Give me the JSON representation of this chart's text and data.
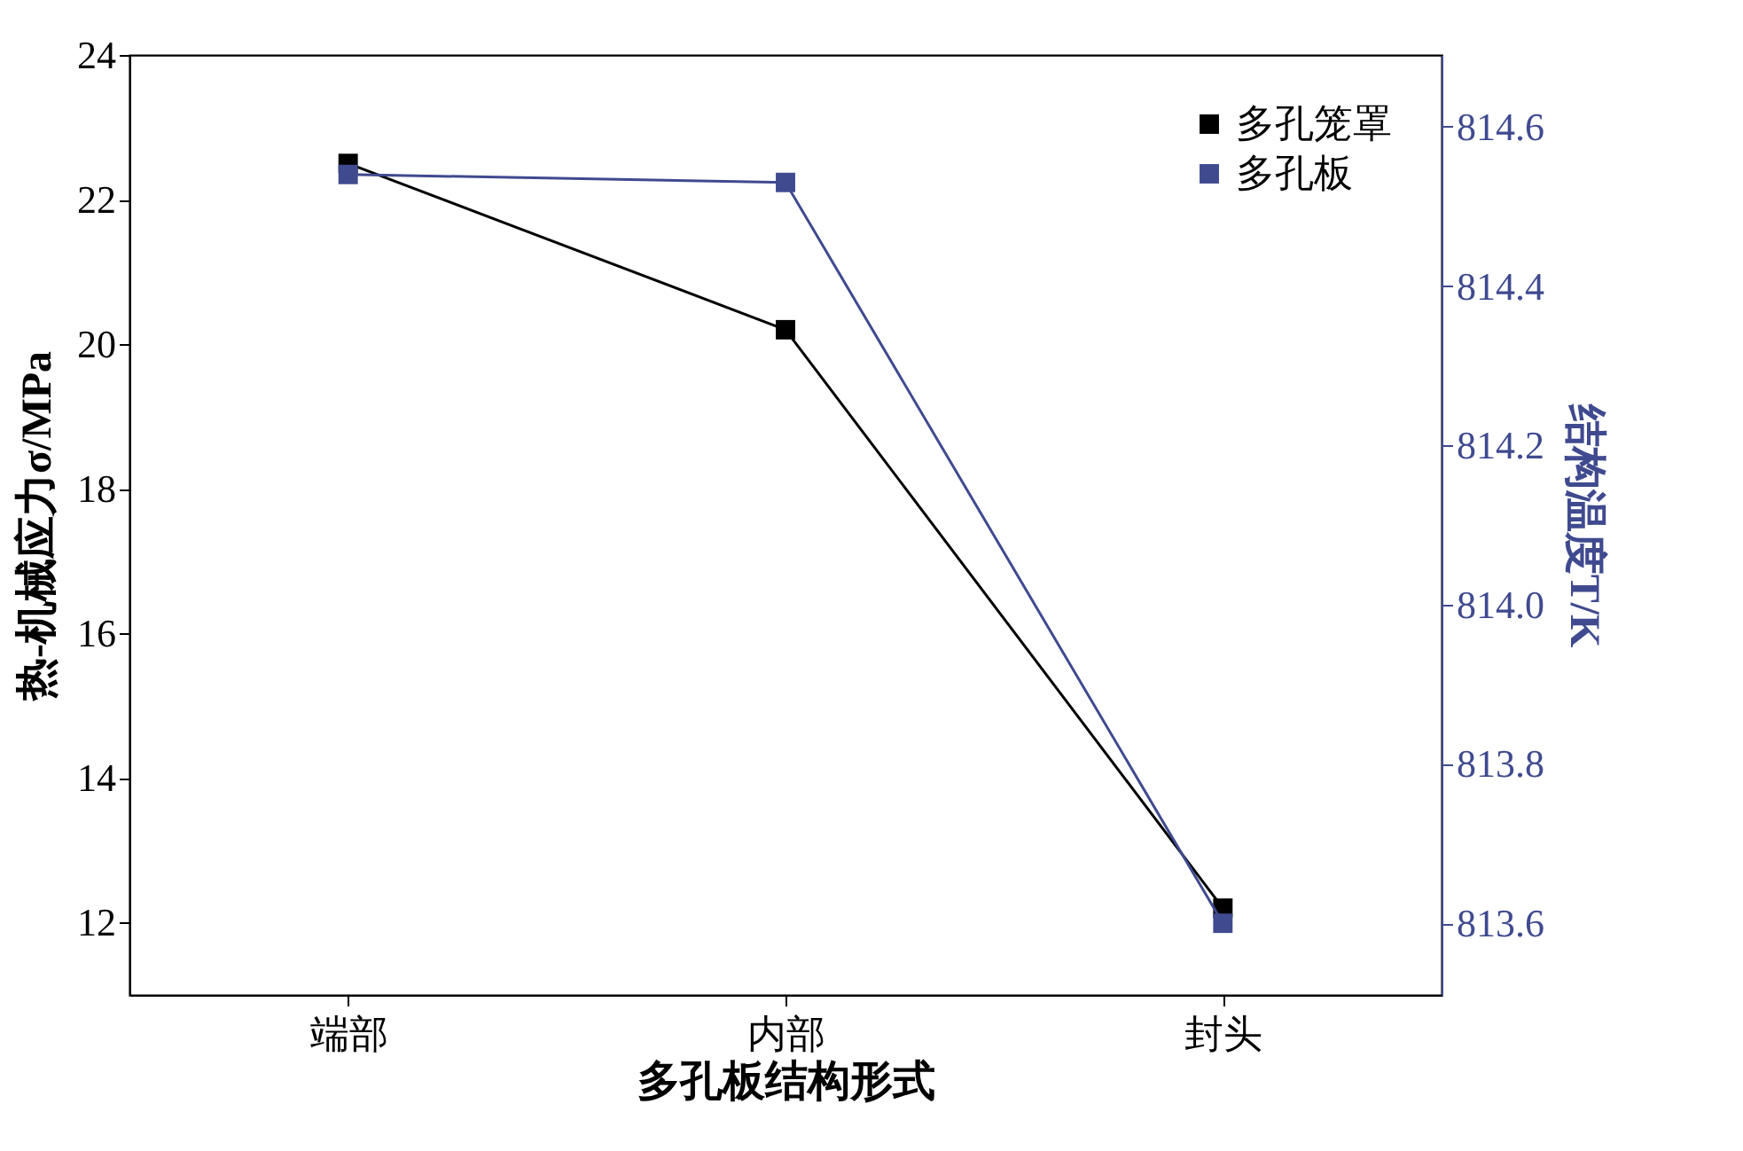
{
  "chart_data": {
    "type": "line",
    "xlabel": "多孔板结构形式",
    "ylabel": "热-机械应力σ/MPa",
    "y2label": "结构温度T/K",
    "categories": [
      "端部",
      "内部",
      "封头"
    ],
    "series": [
      {
        "name": "多孔笼罩",
        "color": "#000000",
        "values": [
          22.5,
          20.2,
          12.2
        ]
      },
      {
        "name": "多孔板",
        "color": "#3f4a8f",
        "axis": "y2",
        "values": [
          814.54,
          814.53,
          813.6
        ]
      }
    ],
    "ylim": [
      11,
      24
    ],
    "yticks": [
      12,
      14,
      16,
      18,
      20,
      22,
      24
    ],
    "y2lim": [
      813.51,
      814.69
    ],
    "y2ticks": [
      813.6,
      813.8,
      {
        "value": 814,
        "label": "814.0"
      },
      814.2,
      814.4,
      814.6
    ],
    "marker": "square",
    "line_style": "solid",
    "legend": "top right",
    "grid": false
  }
}
